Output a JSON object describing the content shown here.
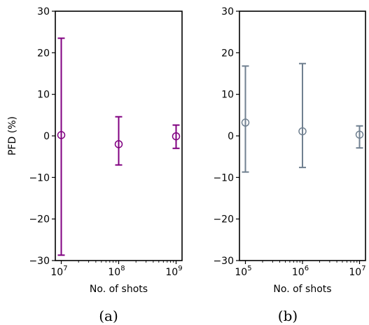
{
  "chart_data": [
    {
      "type": "scatter",
      "panel_label": "(a)",
      "xlabel": "No. of shots",
      "ylabel": "PFD (%)",
      "x_scale": "log",
      "xlim": [
        10000000,
        1000000000
      ],
      "ylim": [
        -30,
        30
      ],
      "y_ticks": [
        "30",
        "20",
        "10",
        "0",
        "−10",
        "−20",
        "−30"
      ],
      "x_ticks": [
        {
          "base": "10",
          "exp": "7",
          "value": 10000000
        },
        {
          "base": "10",
          "exp": "8",
          "value": 100000000
        },
        {
          "base": "10",
          "exp": "9",
          "value": 1000000000
        }
      ],
      "color": "#800080",
      "grid": false,
      "points": [
        {
          "x": 10000000,
          "y": 0.2,
          "err_low": -28.7,
          "err_high": 23.5
        },
        {
          "x": 100000000,
          "y": -2.0,
          "err_low": -7.0,
          "err_high": 4.6
        },
        {
          "x": 1000000000,
          "y": -0.1,
          "err_low": -3.0,
          "err_high": 2.6
        }
      ]
    },
    {
      "type": "scatter",
      "panel_label": "(b)",
      "xlabel": "No. of shots",
      "ylabel": "",
      "x_scale": "log",
      "xlim": [
        100000,
        10000000
      ],
      "ylim": [
        -30,
        30
      ],
      "y_ticks": [
        "30",
        "20",
        "10",
        "0",
        "−10",
        "−20",
        "−30"
      ],
      "x_ticks": [
        {
          "base": "10",
          "exp": "5",
          "value": 100000
        },
        {
          "base": "10",
          "exp": "6",
          "value": 1000000
        },
        {
          "base": "10",
          "exp": "7",
          "value": 10000000
        }
      ],
      "color": "#708090",
      "grid": false,
      "points": [
        {
          "x": 100000,
          "y": 3.2,
          "err_low": -8.7,
          "err_high": 16.8
        },
        {
          "x": 1000000,
          "y": 1.1,
          "err_low": -7.6,
          "err_high": 17.4
        },
        {
          "x": 10000000,
          "y": 0.3,
          "err_low": -2.9,
          "err_high": 2.4
        }
      ]
    }
  ]
}
